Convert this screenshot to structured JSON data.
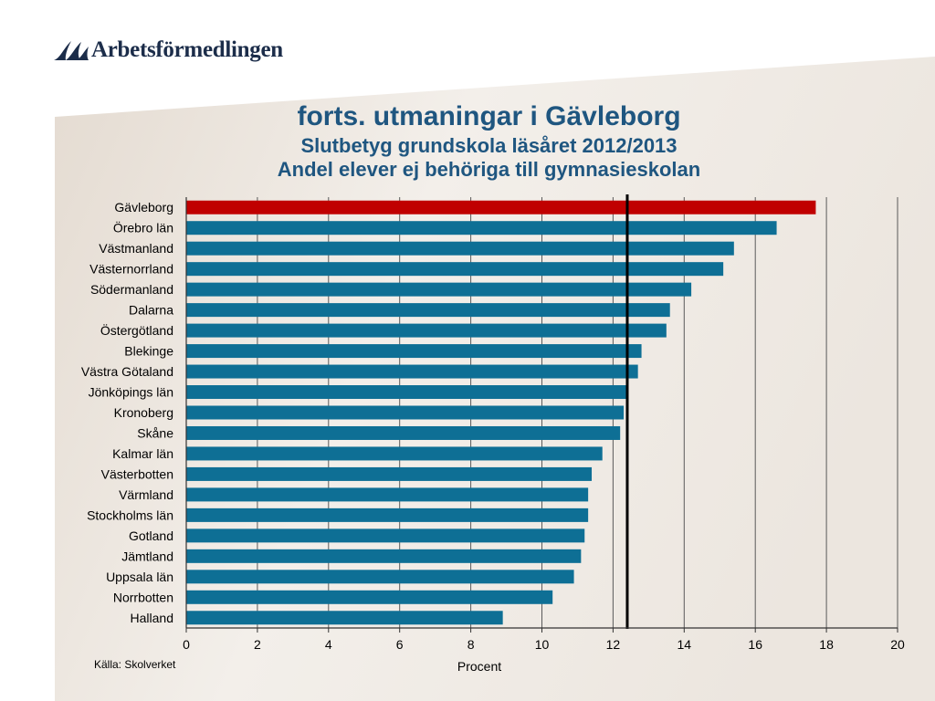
{
  "logo": {
    "text": "Arbetsförmedlingen"
  },
  "title": "forts. utmaningar i Gävleborg",
  "subtitle1": "Slutbetyg grundskola läsåret 2012/2013",
  "subtitle2": "Andel elever ej behöriga till gymnasieskolan",
  "source": "Källa: Skolverket",
  "colors": {
    "highlight": "#c00000",
    "bar": "#0e6f95",
    "title": "#1f5680",
    "reference": "#000000"
  },
  "chart_data": {
    "type": "bar",
    "orientation": "horizontal",
    "categories": [
      "Gävleborg",
      "Örebro län",
      "Västmanland",
      "Västernorrland",
      "Södermanland",
      "Dalarna",
      "Östergötland",
      "Blekinge",
      "Västra Götaland",
      "Jönköpings län",
      "Kronoberg",
      "Skåne",
      "Kalmar län",
      "Västerbotten",
      "Värmland",
      "Stockholms län",
      "Gotland",
      "Jämtland",
      "Uppsala län",
      "Norrbotten",
      "Halland"
    ],
    "values": [
      17.7,
      16.6,
      15.4,
      15.1,
      14.2,
      13.6,
      13.5,
      12.8,
      12.7,
      12.4,
      12.3,
      12.2,
      11.7,
      11.4,
      11.3,
      11.3,
      11.2,
      11.1,
      10.9,
      10.3,
      8.9
    ],
    "highlight": "Gävleborg",
    "reference_line": 12.4,
    "xlabel": "Procent",
    "ylabel": "",
    "xlim": [
      0,
      20
    ],
    "xticks": [
      0,
      2,
      4,
      6,
      8,
      10,
      12,
      14,
      16,
      18,
      20
    ],
    "grid": true
  }
}
